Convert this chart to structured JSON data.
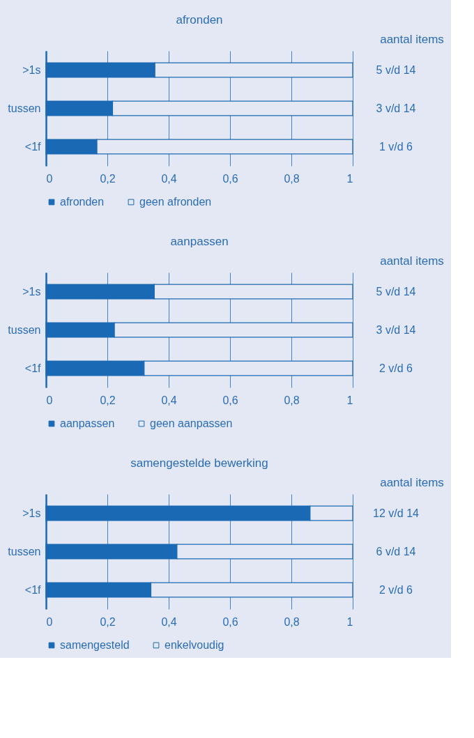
{
  "chart_data": [
    {
      "type": "bar",
      "orientation": "horizontal",
      "stacked": true,
      "title": "afronden",
      "y2label": "aantal items",
      "categories": [
        ">1s",
        "tussen",
        "<1f"
      ],
      "series": [
        {
          "name": "afronden",
          "color": "#1a69b4",
          "values": [
            0.355,
            0.217,
            0.166
          ]
        },
        {
          "name": "geen afronden",
          "color": "#e4e8f4",
          "values": [
            0.645,
            0.783,
            0.834
          ]
        }
      ],
      "annotations": [
        "5 v/d 14",
        "3 v/d 14",
        "1 v/d 6"
      ],
      "xlim": [
        0,
        1
      ],
      "xticks": [
        0,
        {
          "value": 0.2,
          "label": "0,2"
        },
        {
          "value": 0.4,
          "label": "0,4"
        },
        {
          "value": 0.6,
          "label": "0,6"
        },
        {
          "value": 0.8,
          "label": "0,8"
        },
        1
      ],
      "grid": "x",
      "legend": "bottom"
    },
    {
      "type": "bar",
      "orientation": "horizontal",
      "stacked": true,
      "title": "aanpassen",
      "y2label": "aantal items",
      "categories": [
        ">1s",
        "tussen",
        "<1f"
      ],
      "series": [
        {
          "name": "aanpassen",
          "color": "#1a69b4",
          "values": [
            0.353,
            0.223,
            0.32
          ]
        },
        {
          "name": "geen aanpassen",
          "color": "#e4e8f4",
          "values": [
            0.647,
            0.777,
            0.68
          ]
        }
      ],
      "annotations": [
        "5 v/d 14",
        "3 v/d 14",
        "2 v/d 6"
      ],
      "xlim": [
        0,
        1
      ],
      "xticks": [
        0,
        {
          "value": 0.2,
          "label": "0,2"
        },
        {
          "value": 0.4,
          "label": "0,4"
        },
        {
          "value": 0.6,
          "label": "0,6"
        },
        {
          "value": 0.8,
          "label": "0,8"
        },
        1
      ],
      "grid": "x",
      "legend": "bottom"
    },
    {
      "type": "bar",
      "orientation": "horizontal",
      "stacked": true,
      "title": "samengestelde bewerking",
      "y2label": "aantal items",
      "categories": [
        ">1s",
        "tussen",
        "<1f"
      ],
      "series": [
        {
          "name": "samengesteld",
          "color": "#1a69b4",
          "values": [
            0.861,
            0.427,
            0.342
          ]
        },
        {
          "name": "enkelvoudig",
          "color": "#e4e8f4",
          "values": [
            0.139,
            0.573,
            0.658
          ]
        }
      ],
      "annotations": [
        "12 v/d 14",
        "6 v/d 14",
        "2 v/d 6"
      ],
      "xlim": [
        0,
        1
      ],
      "xticks": [
        0,
        {
          "value": 0.2,
          "label": "0,2"
        },
        {
          "value": 0.4,
          "label": "0,4"
        },
        {
          "value": 0.6,
          "label": "0,6"
        },
        {
          "value": 0.8,
          "label": "0,8"
        },
        1
      ],
      "grid": "x",
      "legend": "bottom"
    }
  ]
}
